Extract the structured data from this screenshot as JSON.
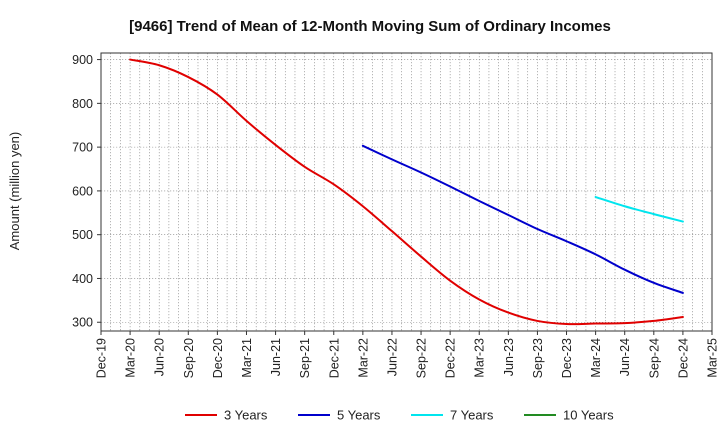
{
  "chart_data": {
    "type": "line",
    "title": "[9466]  Trend of Mean of 12-Month Moving Sum of Ordinary Incomes",
    "ylabel": "Amount (million yen)",
    "xlabel": "",
    "ylim": [
      280,
      915
    ],
    "yticks": [
      300,
      400,
      500,
      600,
      700,
      800,
      900
    ],
    "x_tick_labels": [
      "Dec-19",
      "Mar-20",
      "Jun-20",
      "Sep-20",
      "Dec-20",
      "Mar-21",
      "Jun-21",
      "Sep-21",
      "Dec-21",
      "Mar-22",
      "Jun-22",
      "Sep-22",
      "Dec-22",
      "Mar-23",
      "Jun-23",
      "Sep-23",
      "Dec-23",
      "Mar-24",
      "Jun-24",
      "Sep-24",
      "Dec-24",
      "Mar-25"
    ],
    "grid": true,
    "legend_position": "bottom",
    "series": [
      {
        "name": "3 Years",
        "color": "#e00000",
        "points": [
          [
            "Mar-20",
            900
          ],
          [
            "Jun-20",
            887
          ],
          [
            "Sep-20",
            860
          ],
          [
            "Dec-20",
            820
          ],
          [
            "Mar-21",
            760
          ],
          [
            "Jun-21",
            705
          ],
          [
            "Sep-21",
            655
          ],
          [
            "Dec-21",
            615
          ],
          [
            "Mar-22",
            565
          ],
          [
            "Jun-22",
            508
          ],
          [
            "Sep-22",
            450
          ],
          [
            "Dec-22",
            395
          ],
          [
            "Mar-23",
            352
          ],
          [
            "Jun-23",
            322
          ],
          [
            "Sep-23",
            303
          ],
          [
            "Dec-23",
            296
          ],
          [
            "Mar-24",
            297
          ],
          [
            "Jun-24",
            298
          ],
          [
            "Sep-24",
            303
          ],
          [
            "Dec-24",
            312
          ]
        ]
      },
      {
        "name": "5 Years",
        "color": "#0000cc",
        "points": [
          [
            "Mar-22",
            703
          ],
          [
            "Jun-22",
            672
          ],
          [
            "Sep-22",
            642
          ],
          [
            "Dec-22",
            610
          ],
          [
            "Mar-23",
            577
          ],
          [
            "Jun-23",
            545
          ],
          [
            "Sep-23",
            513
          ],
          [
            "Dec-23",
            485
          ],
          [
            "Mar-24",
            455
          ],
          [
            "Jun-24",
            420
          ],
          [
            "Sep-24",
            390
          ],
          [
            "Dec-24",
            367
          ]
        ]
      },
      {
        "name": "7 Years",
        "color": "#00e5ee",
        "points": [
          [
            "Mar-24",
            586
          ],
          [
            "Jun-24",
            565
          ],
          [
            "Sep-24",
            547
          ],
          [
            "Dec-24",
            530
          ]
        ]
      },
      {
        "name": "10 Years",
        "color": "#228b22",
        "points": []
      }
    ]
  }
}
